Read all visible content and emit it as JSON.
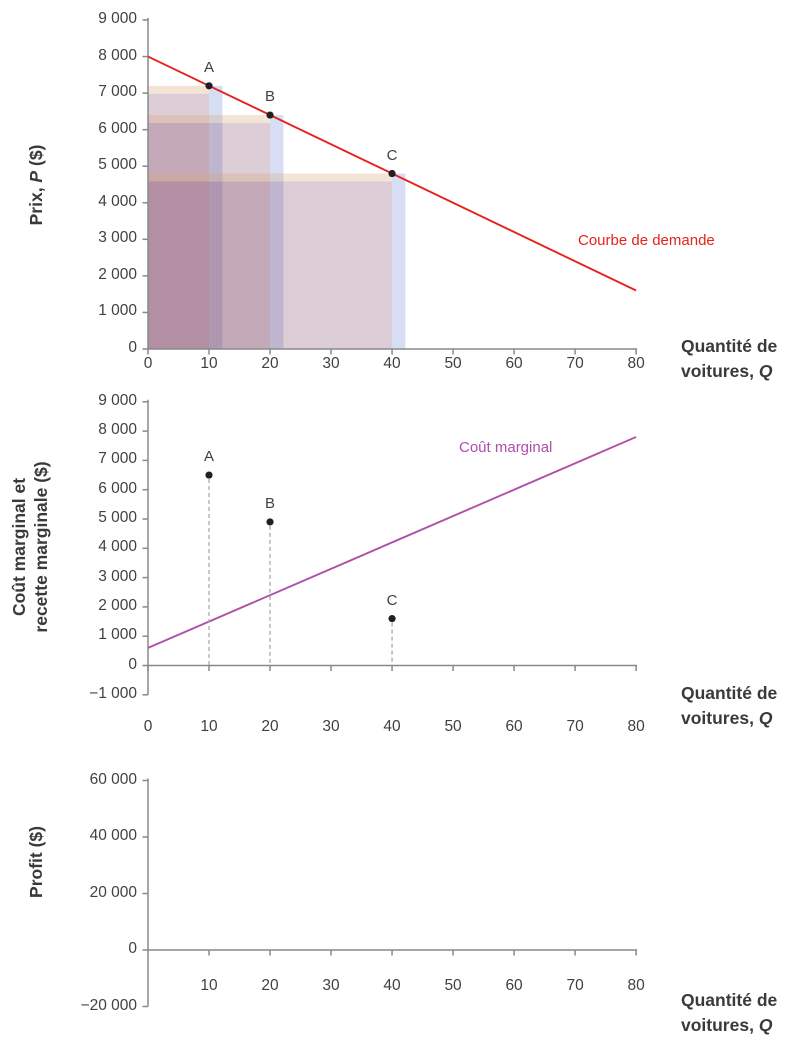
{
  "colors": {
    "text": "#414042",
    "axis": "#87898c",
    "demand_red": "#e5231b",
    "marginal_cost_magenta": "#b04fa8",
    "point_dot": "#231f20",
    "drop_dash_gray": "#a7a9ac",
    "rectangle_fill": "rgba(133,77,107,0.28)",
    "rectangle_right_band": "rgba(110,135,215,0.28)",
    "rectangle_top_band": "rgba(215,165,120,0.30)"
  },
  "labels": {
    "x_axis_title": [
      [
        {
          "t": "Quantité de"
        }
      ],
      [
        {
          "t": "voitures, "
        },
        {
          "t": "Q",
          "italic": true
        }
      ]
    ]
  },
  "chart_data": [
    {
      "id": "demande",
      "type": "line",
      "xlabel": "Quantité de voitures, Q",
      "ylabel": "Prix, P ($)",
      "ylabel_lines": [
        [
          {
            "t": "Prix, "
          },
          {
            "t": "P",
            "italic": true
          },
          {
            "t": " ($)"
          }
        ]
      ],
      "xlim": [
        0,
        80
      ],
      "ylim": [
        0,
        9000
      ],
      "grid": false,
      "yticks": [
        {
          "v": 9000,
          "label": "9 000"
        },
        {
          "v": 8000,
          "label": "8 000"
        },
        {
          "v": 7000,
          "label": "7 000"
        },
        {
          "v": 6000,
          "label": "6 000"
        },
        {
          "v": 5000,
          "label": "5 000"
        },
        {
          "v": 4000,
          "label": "4 000"
        },
        {
          "v": 3000,
          "label": "3 000"
        },
        {
          "v": 2000,
          "label": "2 000"
        },
        {
          "v": 1000,
          "label": "1 000"
        },
        {
          "v": 0,
          "label": "0"
        }
      ],
      "xticks": [
        {
          "v": 0,
          "label": "0"
        },
        {
          "v": 10,
          "label": "10"
        },
        {
          "v": 20,
          "label": "20"
        },
        {
          "v": 30,
          "label": "30"
        },
        {
          "v": 40,
          "label": "40"
        },
        {
          "v": 50,
          "label": "50"
        },
        {
          "v": 60,
          "label": "60"
        },
        {
          "v": 70,
          "label": "70"
        },
        {
          "v": 80,
          "label": "80"
        }
      ],
      "series": [
        {
          "name": "Courbe de demande",
          "color": "#e5231b",
          "points": [
            [
              0,
              8000
            ],
            [
              80,
              1600
            ]
          ]
        }
      ],
      "curve_label": {
        "text": "Courbe de demande",
        "color": "#e5231b"
      },
      "points": [
        {
          "label": "A",
          "x": 10,
          "y": 7200,
          "drop_line": false
        },
        {
          "label": "B",
          "x": 20,
          "y": 6400,
          "drop_line": false
        },
        {
          "label": "C",
          "x": 40,
          "y": 4800,
          "drop_line": false
        }
      ],
      "revenue_rectangles": [
        {
          "point": "A",
          "width_q": 10,
          "height_price": 7200
        },
        {
          "point": "B",
          "width_q": 20,
          "height_price": 6400
        },
        {
          "point": "C",
          "width_q": 40,
          "height_price": 4800
        }
      ]
    },
    {
      "id": "cout-recette-marginale",
      "type": "line",
      "xlabel": "Quantité de voitures, Q",
      "ylabel": "Coût marginal et recette marginale ($)",
      "ylabel_lines": [
        [
          {
            "t": "Coût marginal et"
          }
        ],
        [
          {
            "t": "recette marginale ($)"
          }
        ]
      ],
      "xlim": [
        0,
        80
      ],
      "ylim": [
        -1000,
        9000
      ],
      "grid": false,
      "yticks": [
        {
          "v": 9000,
          "label": "9 000"
        },
        {
          "v": 8000,
          "label": "8 000"
        },
        {
          "v": 7000,
          "label": "7 000"
        },
        {
          "v": 6000,
          "label": "6 000"
        },
        {
          "v": 5000,
          "label": "5 000"
        },
        {
          "v": 4000,
          "label": "4 000"
        },
        {
          "v": 3000,
          "label": "3 000"
        },
        {
          "v": 2000,
          "label": "2 000"
        },
        {
          "v": 1000,
          "label": "1 000"
        },
        {
          "v": 0,
          "label": "0"
        },
        {
          "v": -1000,
          "label": "−1 000"
        }
      ],
      "xticks": [
        {
          "v": 0,
          "label": "0"
        },
        {
          "v": 10,
          "label": "10"
        },
        {
          "v": 20,
          "label": "20"
        },
        {
          "v": 30,
          "label": "30"
        },
        {
          "v": 40,
          "label": "40"
        },
        {
          "v": 50,
          "label": "50"
        },
        {
          "v": 60,
          "label": "60"
        },
        {
          "v": 70,
          "label": "70"
        },
        {
          "v": 80,
          "label": "80"
        }
      ],
      "series": [
        {
          "name": "Coût marginal",
          "color": "#b04fa8",
          "points": [
            [
              0,
              600
            ],
            [
              80,
              7800
            ]
          ]
        }
      ],
      "curve_label": {
        "text": "Coût marginal",
        "color": "#b04fa8"
      },
      "points": [
        {
          "label": "A",
          "x": 10,
          "y": 6500,
          "drop_line": true
        },
        {
          "label": "B",
          "x": 20,
          "y": 4900,
          "drop_line": true
        },
        {
          "label": "C",
          "x": 40,
          "y": 1600,
          "drop_line": true
        }
      ],
      "revenue_rectangles": []
    },
    {
      "id": "profit",
      "type": "line",
      "xlabel": "Quantité de voitures, Q",
      "ylabel": "Profit ($)",
      "ylabel_lines": [
        [
          {
            "t": "Profit ($)"
          }
        ]
      ],
      "xlim": [
        0,
        80
      ],
      "ylim": [
        -20000,
        60000
      ],
      "grid": false,
      "yticks": [
        {
          "v": 60000,
          "label": "60 000"
        },
        {
          "v": 40000,
          "label": "40 000"
        },
        {
          "v": 20000,
          "label": "20 000"
        },
        {
          "v": 0,
          "label": "0"
        },
        {
          "v": -20000,
          "label": "−20 000"
        }
      ],
      "xticks": [
        {
          "v": 10,
          "label": "10"
        },
        {
          "v": 20,
          "label": "20"
        },
        {
          "v": 30,
          "label": "30"
        },
        {
          "v": 40,
          "label": "40"
        },
        {
          "v": 50,
          "label": "50"
        },
        {
          "v": 60,
          "label": "60"
        },
        {
          "v": 70,
          "label": "70"
        },
        {
          "v": 80,
          "label": "80"
        }
      ],
      "series": [],
      "curve_label": null,
      "points": [],
      "revenue_rectangles": []
    }
  ]
}
